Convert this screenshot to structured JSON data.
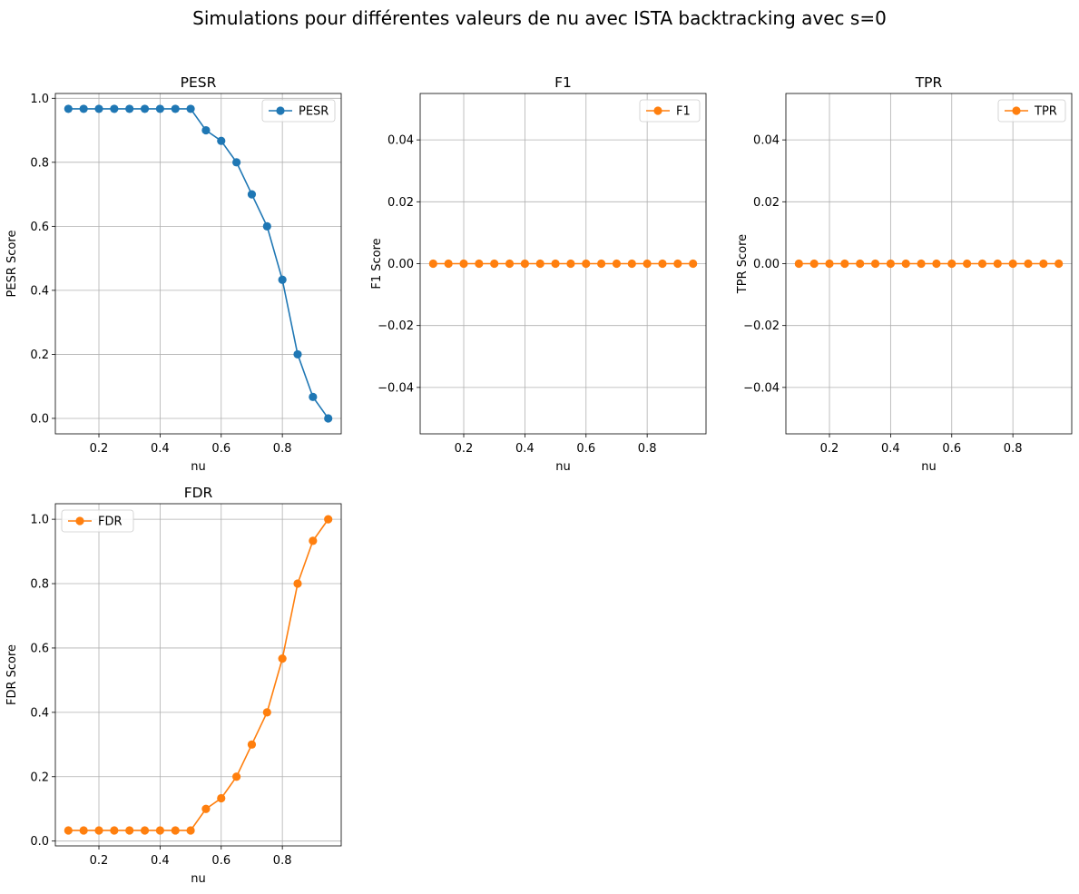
{
  "suptitle": "Simulations pour différentes valeurs de nu avec ISTA backtracking avec s=0",
  "colors": {
    "blue": "#1f77b4",
    "orange": "#ff7f0e",
    "grid": "#b0b0b0",
    "legend_border": "#cccccc"
  },
  "chart_data": [
    {
      "type": "line",
      "title": "PESR",
      "xlabel": "nu",
      "ylabel": "PESR Score",
      "legend": "top-right",
      "grid": true,
      "xlim": [
        0.0575,
        0.9925
      ],
      "ylim": [
        -0.0483,
        1.015
      ],
      "xticks": [
        0.2,
        0.4,
        0.6,
        0.8
      ],
      "xtick_labels": [
        "0.2",
        "0.4",
        "0.6",
        "0.8"
      ],
      "yticks": [
        0.0,
        0.2,
        0.4,
        0.6,
        0.8,
        1.0
      ],
      "ytick_labels": [
        "0.0",
        "0.2",
        "0.4",
        "0.6",
        "0.8",
        "1.0"
      ],
      "x": [
        0.1,
        0.15,
        0.2,
        0.25,
        0.3,
        0.35,
        0.4,
        0.45,
        0.5,
        0.55,
        0.6,
        0.65,
        0.7,
        0.75,
        0.8,
        0.85,
        0.9,
        0.95
      ],
      "series": [
        {
          "name": "PESR",
          "color": "#1f77b4",
          "values": [
            0.967,
            0.967,
            0.967,
            0.967,
            0.967,
            0.967,
            0.967,
            0.967,
            0.967,
            0.9,
            0.867,
            0.8,
            0.7,
            0.6,
            0.433,
            0.2,
            0.067,
            0.0
          ]
        }
      ]
    },
    {
      "type": "line",
      "title": "F1",
      "xlabel": "nu",
      "ylabel": "F1 Score",
      "legend": "top-right",
      "grid": true,
      "xlim": [
        0.0575,
        0.9925
      ],
      "ylim": [
        -0.055,
        0.055
      ],
      "xticks": [
        0.2,
        0.4,
        0.6,
        0.8
      ],
      "xtick_labels": [
        "0.2",
        "0.4",
        "0.6",
        "0.8"
      ],
      "yticks": [
        -0.04,
        -0.02,
        0.0,
        0.02,
        0.04
      ],
      "ytick_labels": [
        "−0.04",
        "−0.02",
        "0.00",
        "0.02",
        "0.04"
      ],
      "x": [
        0.1,
        0.15,
        0.2,
        0.25,
        0.3,
        0.35,
        0.4,
        0.45,
        0.5,
        0.55,
        0.6,
        0.65,
        0.7,
        0.75,
        0.8,
        0.85,
        0.9,
        0.95
      ],
      "series": [
        {
          "name": "F1",
          "color": "#ff7f0e",
          "values": [
            0,
            0,
            0,
            0,
            0,
            0,
            0,
            0,
            0,
            0,
            0,
            0,
            0,
            0,
            0,
            0,
            0,
            0
          ]
        }
      ]
    },
    {
      "type": "line",
      "title": "TPR",
      "xlabel": "nu",
      "ylabel": "TPR Score",
      "legend": "top-right",
      "grid": true,
      "xlim": [
        0.0575,
        0.9925
      ],
      "ylim": [
        -0.055,
        0.055
      ],
      "xticks": [
        0.2,
        0.4,
        0.6,
        0.8
      ],
      "xtick_labels": [
        "0.2",
        "0.4",
        "0.6",
        "0.8"
      ],
      "yticks": [
        -0.04,
        -0.02,
        0.0,
        0.02,
        0.04
      ],
      "ytick_labels": [
        "−0.04",
        "−0.02",
        "0.00",
        "0.02",
        "0.04"
      ],
      "x": [
        0.1,
        0.15,
        0.2,
        0.25,
        0.3,
        0.35,
        0.4,
        0.45,
        0.5,
        0.55,
        0.6,
        0.65,
        0.7,
        0.75,
        0.8,
        0.85,
        0.9,
        0.95
      ],
      "series": [
        {
          "name": "TPR",
          "color": "#ff7f0e",
          "values": [
            0,
            0,
            0,
            0,
            0,
            0,
            0,
            0,
            0,
            0,
            0,
            0,
            0,
            0,
            0,
            0,
            0,
            0
          ]
        }
      ]
    },
    {
      "type": "line",
      "title": "FDR",
      "xlabel": "nu",
      "ylabel": "FDR Score",
      "legend": "top-left",
      "grid": true,
      "xlim": [
        0.0575,
        0.9925
      ],
      "ylim": [
        -0.015,
        1.0483
      ],
      "xticks": [
        0.2,
        0.4,
        0.6,
        0.8
      ],
      "xtick_labels": [
        "0.2",
        "0.4",
        "0.6",
        "0.8"
      ],
      "yticks": [
        0.0,
        0.2,
        0.4,
        0.6,
        0.8,
        1.0
      ],
      "ytick_labels": [
        "0.0",
        "0.2",
        "0.4",
        "0.6",
        "0.8",
        "1.0"
      ],
      "x": [
        0.1,
        0.15,
        0.2,
        0.25,
        0.3,
        0.35,
        0.4,
        0.45,
        0.5,
        0.55,
        0.6,
        0.65,
        0.7,
        0.75,
        0.8,
        0.85,
        0.9,
        0.95
      ],
      "series": [
        {
          "name": "FDR",
          "color": "#ff7f0e",
          "values": [
            0.033,
            0.033,
            0.033,
            0.033,
            0.033,
            0.033,
            0.033,
            0.033,
            0.033,
            0.1,
            0.133,
            0.2,
            0.3,
            0.4,
            0.567,
            0.8,
            0.933,
            1.0
          ]
        }
      ]
    }
  ]
}
